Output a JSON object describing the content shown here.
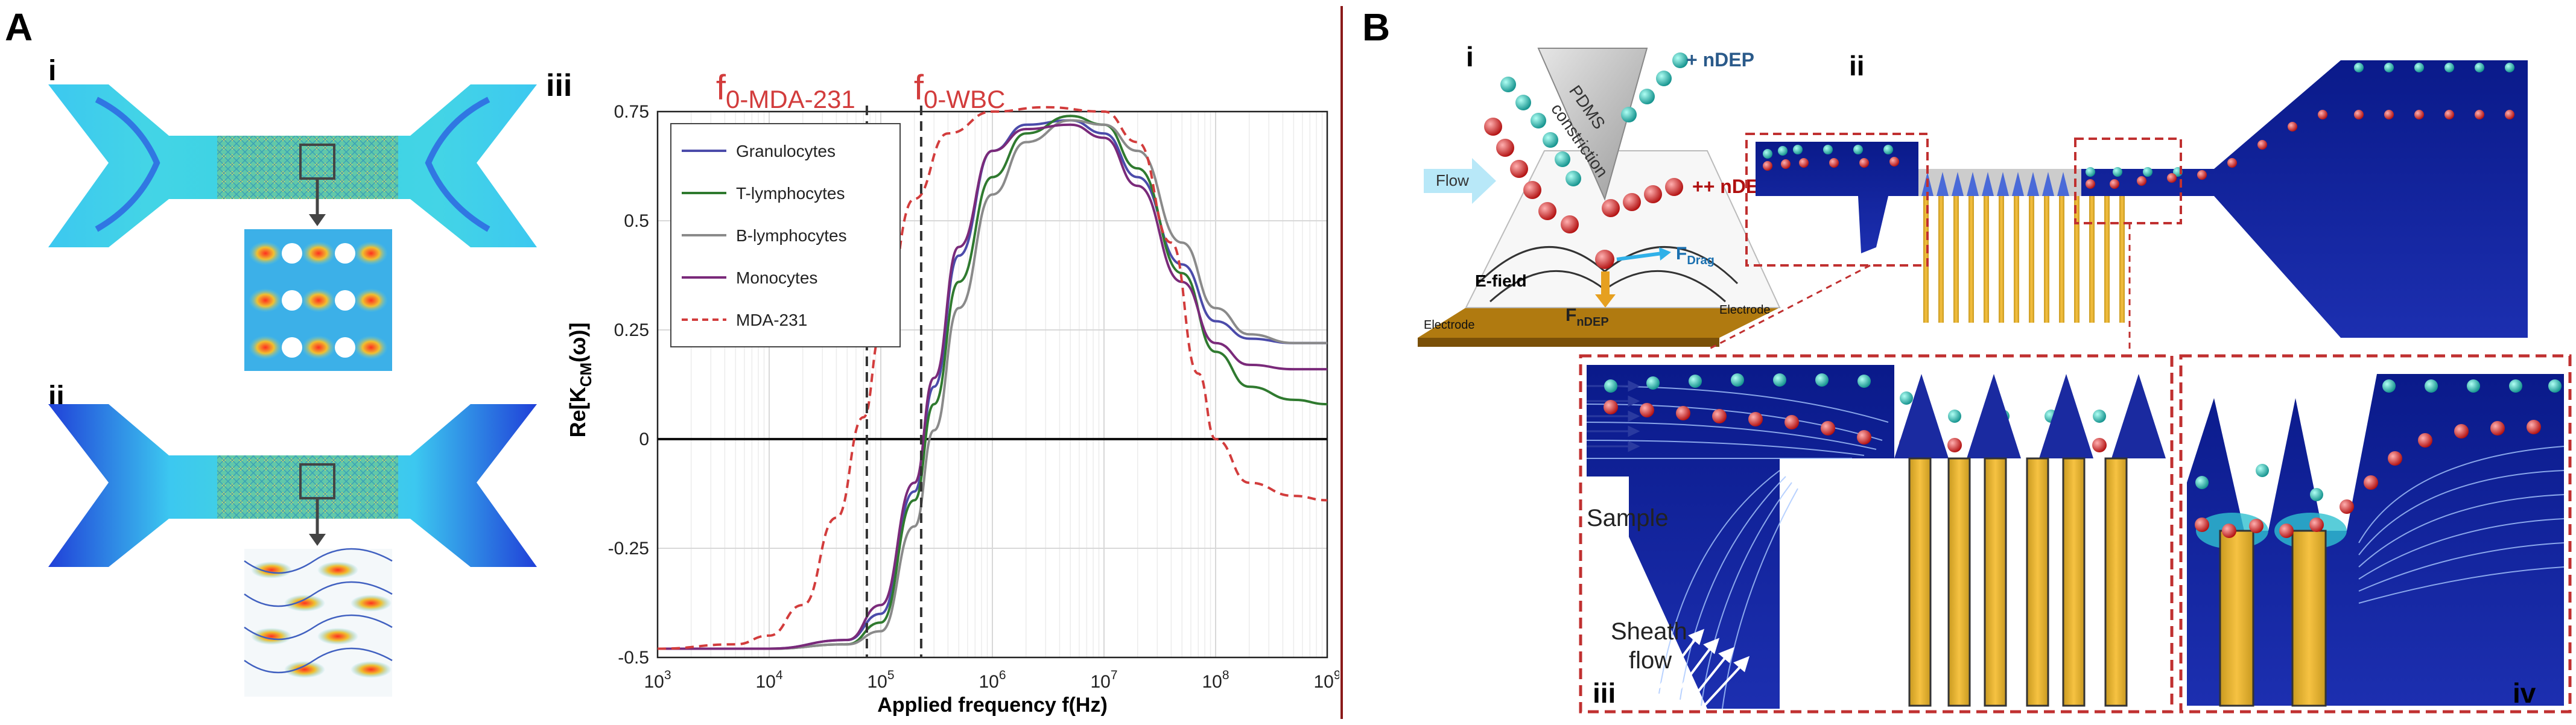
{
  "panelA": {
    "label": "A",
    "sub_i": "i",
    "sub_ii": "ii",
    "sub_iii": "iii"
  },
  "panelB": {
    "label": "B",
    "sub_i": "i",
    "sub_ii": "ii",
    "sub_iii": "iii",
    "sub_iv": "iv",
    "texts": {
      "pdms": "PDMS",
      "constriction": "constriction",
      "plus_ndep": "+ nDEP",
      "plusplus_ndep": "++ nDEP",
      "flow": "Flow",
      "efield": "E-field",
      "fdrag_main": "F",
      "fdrag_sub": "Drag",
      "fndep_main": "F",
      "fndep_sub": "nDEP",
      "electrode": "Electrode",
      "sample": "Sample",
      "sheath1": "Sheath",
      "sheath2": "flow"
    }
  },
  "colors": {
    "granulocytes": "#4b4baa",
    "t_lymphocytes": "#2f7a2f",
    "b_lymphocytes": "#8a8a8a",
    "monocytes": "#7a2a7a",
    "mda231": "#d23c3c",
    "divider": "#8b1a1a",
    "annotation_red": "#d23c3c"
  },
  "chart_data": {
    "type": "line",
    "x_scale": "log",
    "xlabel": "Applied frequency f(Hz)",
    "ylabel_main": "Re[K",
    "ylabel_sub": "CM",
    "ylabel_tail": "(ω)]",
    "xlim": [
      1000,
      1000000000
    ],
    "ylim": [
      -0.5,
      0.75
    ],
    "x_ticks": [
      1000,
      10000,
      100000,
      1000000,
      10000000,
      100000000,
      1000000000
    ],
    "x_tick_exponents": [
      "3",
      "4",
      "5",
      "6",
      "7",
      "8",
      "9"
    ],
    "x_tick_base": "10",
    "y_ticks": [
      -0.5,
      -0.25,
      0,
      0.25,
      0.5,
      0.75
    ],
    "y_tick_labels": [
      "-0.5",
      "-0.25",
      "0",
      "0.25",
      "0.5",
      "0.75"
    ],
    "grid": true,
    "legend_position": "top-left",
    "vlines": [
      {
        "x": 75000,
        "label_main": "f",
        "label_sub": "0-MDA-231"
      },
      {
        "x": 230000,
        "label_main": "f",
        "label_sub": "0-WBC"
      }
    ],
    "series": [
      {
        "name": "Granulocytes",
        "style": "solid",
        "x": [
          1000,
          10000,
          50000,
          100000,
          200000,
          300000,
          500000,
          1000000,
          2000000,
          5000000,
          10000000,
          20000000,
          50000000,
          100000000,
          200000000,
          500000000,
          1000000000
        ],
        "y": [
          -0.48,
          -0.48,
          -0.46,
          -0.4,
          -0.12,
          0.12,
          0.42,
          0.66,
          0.72,
          0.73,
          0.7,
          0.6,
          0.4,
          0.27,
          0.23,
          0.22,
          0.22
        ]
      },
      {
        "name": "T-lymphocytes",
        "style": "solid",
        "x": [
          1000,
          10000,
          50000,
          100000,
          200000,
          300000,
          500000,
          1000000,
          2000000,
          5000000,
          10000000,
          20000000,
          50000000,
          100000000,
          200000000,
          500000000,
          1000000000
        ],
        "y": [
          -0.48,
          -0.48,
          -0.47,
          -0.42,
          -0.14,
          0.08,
          0.36,
          0.6,
          0.7,
          0.74,
          0.72,
          0.62,
          0.38,
          0.2,
          0.12,
          0.09,
          0.08
        ]
      },
      {
        "name": "B-lymphocytes",
        "style": "solid",
        "x": [
          1000,
          10000,
          50000,
          100000,
          200000,
          300000,
          500000,
          1000000,
          2000000,
          5000000,
          10000000,
          20000000,
          50000000,
          100000000,
          200000000,
          500000000,
          1000000000
        ],
        "y": [
          -0.48,
          -0.48,
          -0.47,
          -0.44,
          -0.2,
          0.02,
          0.3,
          0.56,
          0.68,
          0.73,
          0.72,
          0.66,
          0.45,
          0.3,
          0.24,
          0.22,
          0.22
        ]
      },
      {
        "name": "Monocytes",
        "style": "solid",
        "x": [
          1000,
          10000,
          50000,
          100000,
          200000,
          300000,
          500000,
          1000000,
          2000000,
          5000000,
          10000000,
          20000000,
          50000000,
          100000000,
          200000000,
          500000000,
          1000000000
        ],
        "y": [
          -0.48,
          -0.48,
          -0.46,
          -0.38,
          -0.1,
          0.14,
          0.44,
          0.66,
          0.71,
          0.72,
          0.69,
          0.58,
          0.36,
          0.22,
          0.17,
          0.16,
          0.16
        ]
      },
      {
        "name": "MDA-231",
        "style": "dashed",
        "x": [
          1000,
          5000,
          10000,
          20000,
          40000,
          70000,
          100000,
          200000,
          400000,
          1000000,
          3000000,
          10000000,
          20000000,
          40000000,
          70000000,
          100000000,
          200000000,
          500000000,
          1000000000
        ],
        "y": [
          -0.48,
          -0.47,
          -0.45,
          -0.38,
          -0.18,
          0.05,
          0.24,
          0.55,
          0.7,
          0.75,
          0.76,
          0.75,
          0.68,
          0.45,
          0.15,
          0.0,
          -0.1,
          -0.13,
          -0.14
        ]
      }
    ]
  }
}
